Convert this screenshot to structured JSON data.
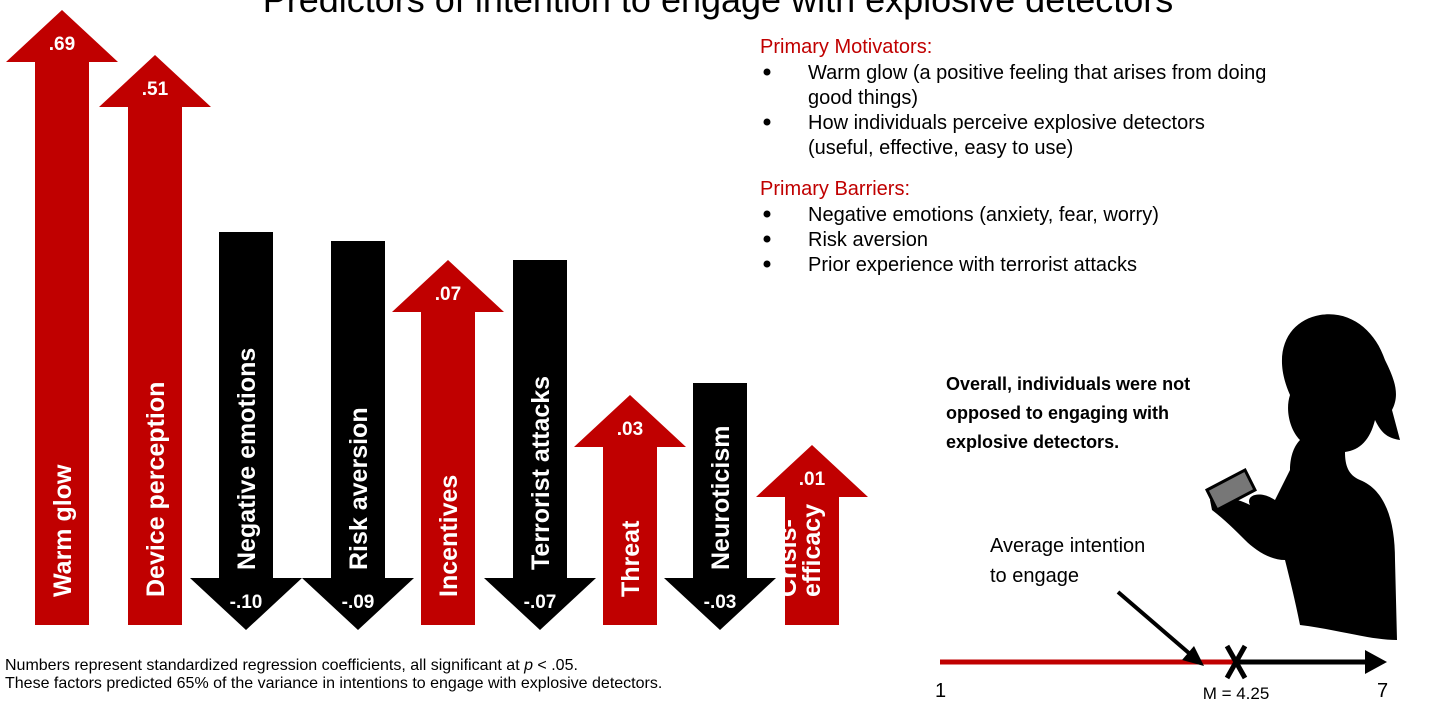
{
  "title": "Predictors of intention to engage with explosive detectors",
  "arrows": [
    {
      "label": "Warm glow",
      "value": ".69",
      "direction": "up"
    },
    {
      "label": "Device perception",
      "value": ".51",
      "direction": "up"
    },
    {
      "label": "Negative emotions",
      "value": "-.10",
      "direction": "down"
    },
    {
      "label": "Risk aversion",
      "value": "-.09",
      "direction": "down"
    },
    {
      "label": "Incentives",
      "value": ".07",
      "direction": "up"
    },
    {
      "label": "Terrorist attacks",
      "value": "-.07",
      "direction": "down"
    },
    {
      "label": "Threat",
      "value": ".03",
      "direction": "up"
    },
    {
      "label": "Neuroticism",
      "value": "-.03",
      "direction": "down"
    },
    {
      "label": [
        "Crisis-",
        "efficacy"
      ],
      "value": ".01",
      "direction": "up"
    }
  ],
  "motivators": {
    "heading": "Primary Motivators:",
    "items": [
      [
        "Warm glow (a positive feeling that arises from doing",
        "good things)"
      ],
      [
        "How individuals perceive explosive detectors",
        "(useful, effective, easy to use)"
      ]
    ]
  },
  "barriers": {
    "heading": "Primary Barriers:",
    "items": [
      [
        "Negative emotions (anxiety, fear, worry)"
      ],
      [
        "Risk aversion"
      ],
      [
        "Prior experience with terrorist attacks"
      ]
    ]
  },
  "overall": [
    "Overall, individuals were not",
    "opposed to engaging with",
    "explosive detectors."
  ],
  "average_label": [
    "Average intention",
    "to engage"
  ],
  "scale": {
    "min_label": "1",
    "max_label": "7",
    "mean_label": "M = 4.25"
  },
  "footnote": {
    "line1": [
      "Numbers represent standardized regression coefficients, all significant at ",
      "p",
      " < .05."
    ],
    "line2": "These factors predicted 65% of the variance in intentions to engage with explosive detectors."
  }
}
